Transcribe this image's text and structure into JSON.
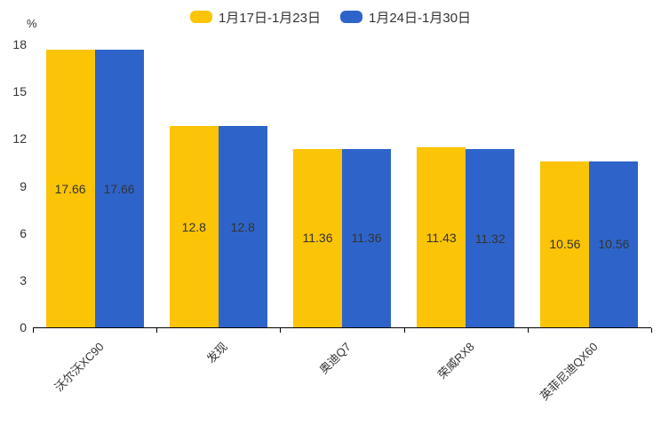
{
  "chart_data": {
    "type": "bar",
    "categories": [
      "沃尔沃XC90",
      "发现",
      "奥迪Q7",
      "荣威RX8",
      "英菲尼迪QX60"
    ],
    "series": [
      {
        "name": "1月17日-1月23日",
        "color": "#FCC406",
        "values": [
          17.66,
          12.8,
          11.36,
          11.43,
          10.56
        ]
      },
      {
        "name": "1月24日-1月30日",
        "color": "#2E64C9",
        "values": [
          17.66,
          12.8,
          11.36,
          11.32,
          10.56
        ]
      }
    ],
    "title": "",
    "xlabel": "",
    "ylabel": "%",
    "yticks": [
      0,
      3,
      6,
      9,
      12,
      15,
      18
    ],
    "ylim": [
      0,
      18
    ],
    "grid": false,
    "legend_position": "top",
    "value_labels": "inside-middle",
    "xlabel_rotation": 45
  },
  "colors": {
    "axis": "#000000",
    "text": "#333333",
    "background": "#ffffff"
  }
}
